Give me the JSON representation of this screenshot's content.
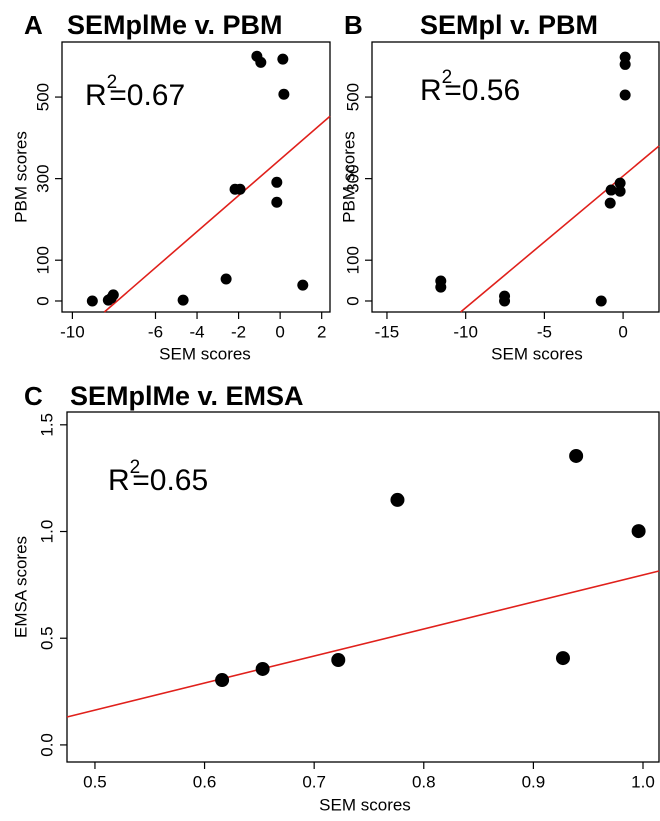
{
  "chart_data": [
    {
      "type": "scatter",
      "panel": "A",
      "title": "SEMplMe v. PBM",
      "x_label": "SEM scores",
      "y_label": "PBM scores",
      "annotation": {
        "text": "R",
        "superscript": "2",
        "rest": "=0.67"
      },
      "color": "#000000",
      "x": [
        -9.04,
        -8.27,
        -8.13,
        -8.03,
        -4.67,
        -2.6,
        -1.12,
        -0.93,
        0.13,
        0.18,
        -2.17,
        -1.93,
        -0.16,
        -0.16,
        1.09
      ],
      "values": [
        0,
        2,
        7,
        15,
        2,
        54,
        600,
        585,
        593,
        507,
        274,
        274,
        291,
        242,
        39
      ],
      "fit_line": {
        "x": [
          -8.46,
          2.4
        ],
        "y": [
          -27,
          453
        ],
        "color": "#e0201b"
      },
      "xlim": [
        -10.5,
        2.4
      ],
      "ylim": [
        -27,
        635
      ],
      "xticks": [
        -10,
        -6,
        -4,
        -2,
        0,
        2
      ],
      "yticks": [
        0,
        100,
        300,
        500
      ]
    },
    {
      "type": "scatter",
      "panel": "B",
      "title": "SEMpl v. PBM",
      "x_label": "SEM scores",
      "y_label": "PBM scores",
      "annotation": {
        "text": "R",
        "superscript": "2",
        "rest": "=0.56"
      },
      "color": "#000000",
      "x": [
        -11.58,
        -11.58,
        -7.53,
        -7.53,
        -1.39,
        -0.76,
        -0.82,
        -0.19,
        -0.19,
        0.13,
        0.13,
        0.13
      ],
      "values": [
        49,
        34,
        12,
        0,
        0,
        272,
        240,
        289,
        269,
        598,
        580,
        505
      ],
      "fit_line": {
        "x": [
          -10.32,
          2.28
        ],
        "y": [
          -27,
          380
        ],
        "color": "#e0201b"
      },
      "xlim": [
        -15.95,
        2.28
      ],
      "ylim": [
        -27,
        635
      ],
      "xticks": [
        -15,
        -10,
        -5,
        0
      ],
      "yticks": [
        0,
        100,
        300,
        500
      ]
    },
    {
      "type": "scatter",
      "panel": "C",
      "title": "SEMplMe v. EMSA",
      "x_label": "SEM scores",
      "y_label": "EMSA scores",
      "annotation": {
        "text": "R",
        "superscript": "2",
        "rest": "=0.65"
      },
      "color": "#000000",
      "x": [
        0.616,
        0.653,
        0.722,
        0.776,
        0.927,
        0.939,
        0.996
      ],
      "values": [
        0.304,
        0.356,
        0.398,
        1.148,
        0.407,
        1.354,
        1.002
      ],
      "fit_line": {
        "x": [
          0.4745,
          1.0146
        ],
        "y": [
          0.131,
          0.815
        ],
        "color": "#e0201b"
      },
      "xlim": [
        0.4745,
        1.0146
      ],
      "ylim": [
        -0.08,
        1.56
      ],
      "xticks": [
        0.5,
        0.6,
        0.7,
        0.8,
        0.9,
        {
          "value": 1,
          "label": "1.0"
        }
      ],
      "yticks": [
        {
          "value": 0,
          "label": "0.0"
        },
        0.5,
        {
          "value": 1,
          "label": "1.0"
        },
        1.5
      ]
    }
  ]
}
